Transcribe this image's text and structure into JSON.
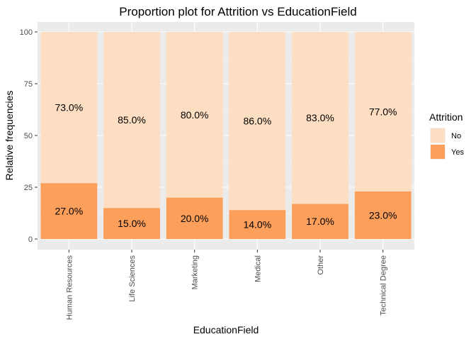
{
  "chart_data": {
    "type": "bar",
    "stacked": true,
    "title": "Proportion plot for Attrition vs EducationField",
    "xlabel": "EducationField",
    "ylabel": "Relative frequencies",
    "ylim": [
      0,
      100
    ],
    "yticks": [
      0,
      25,
      50,
      75,
      100
    ],
    "categories": [
      "Human Resources",
      "Life Sciences",
      "Marketing",
      "Medical",
      "Other",
      "Technical Degree"
    ],
    "series": [
      {
        "name": "Yes",
        "color": "#fc9f5b",
        "values": [
          27,
          15,
          20,
          14,
          17,
          23
        ],
        "labels": [
          "27.0%",
          "15.0%",
          "20.0%",
          "14.0%",
          "17.0%",
          "23.0%"
        ]
      },
      {
        "name": "No",
        "color": "#fddec2",
        "values": [
          73,
          85,
          80,
          86,
          83,
          77
        ],
        "labels": [
          "73.0%",
          "85.0%",
          "80.0%",
          "86.0%",
          "83.0%",
          "77.0%"
        ]
      }
    ],
    "legend": {
      "title": "Attrition",
      "position": "right",
      "items": [
        "No",
        "Yes"
      ]
    },
    "grid": true,
    "panel_background": "#ebebeb"
  }
}
